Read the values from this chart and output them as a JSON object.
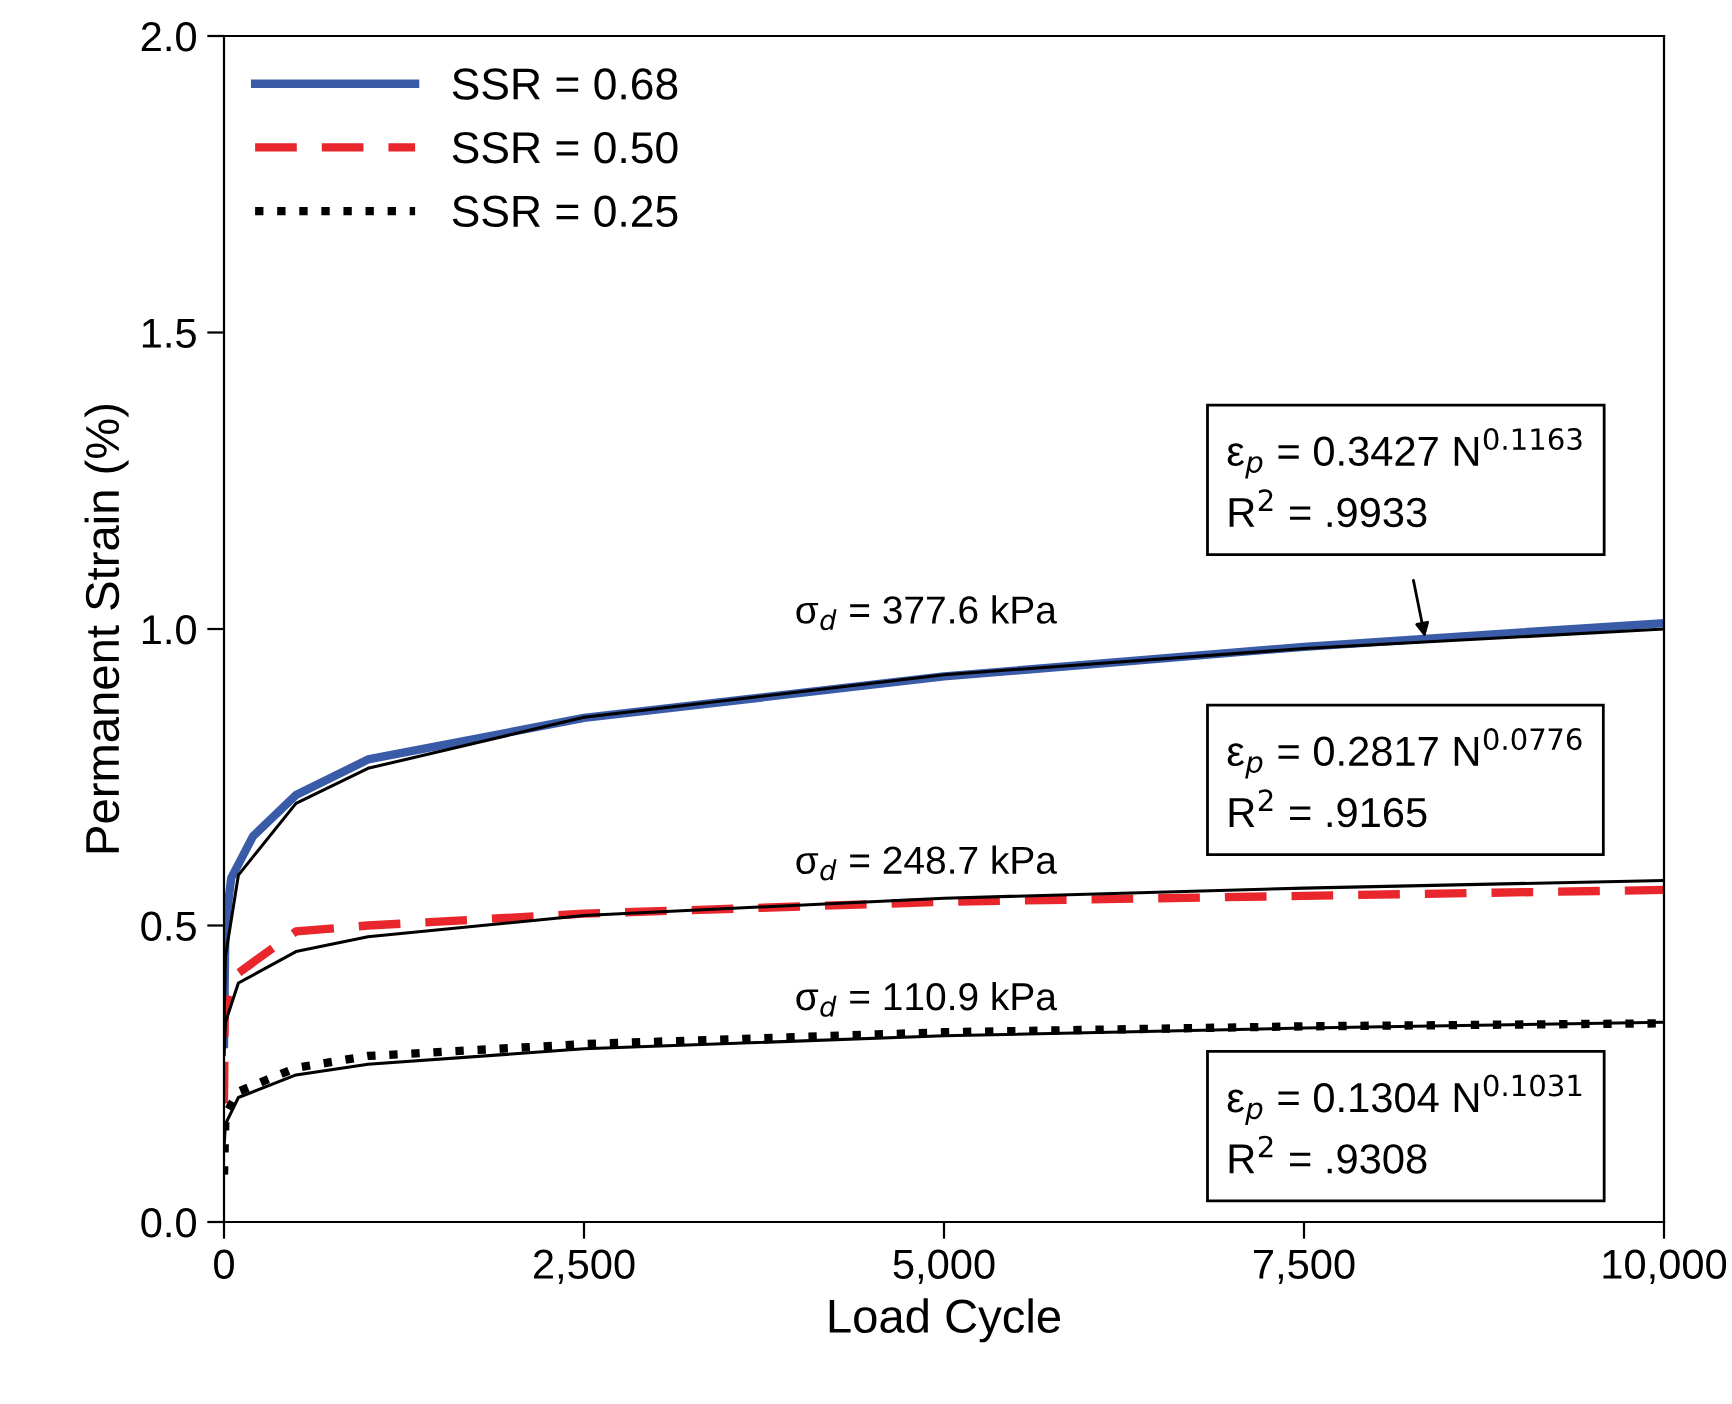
{
  "chart_data": {
    "type": "line",
    "xlabel": "Load Cycle",
    "ylabel": "Permanent Strain (%)",
    "xlim": [
      0,
      10000
    ],
    "ylim": [
      0,
      2.0
    ],
    "xticks": [
      0,
      {
        "value": 2500,
        "label": "2,500"
      },
      {
        "value": 5000,
        "label": "5,000"
      },
      {
        "value": 7500,
        "label": "7,500"
      },
      {
        "value": 10000,
        "label": "10,000"
      }
    ],
    "yticks": [
      {
        "value": 0,
        "label": "0.0"
      },
      0.5,
      {
        "value": 1,
        "label": "1.0"
      },
      1.5,
      {
        "value": 2,
        "label": "2.0"
      }
    ],
    "grid": false,
    "legend": "top left",
    "series": [
      {
        "name": "SSR = 0.68",
        "color": "#3a5ba8",
        "line_style": "solid",
        "x": [
          0,
          10,
          50,
          200,
          500,
          1000,
          2500,
          5000,
          7500,
          10000
        ],
        "values": [
          0.3,
          0.5,
          0.58,
          0.65,
          0.72,
          0.78,
          0.85,
          0.92,
          0.97,
          1.01
        ]
      },
      {
        "name": "SSR = 0.50",
        "color": "#e8262b",
        "line_style": "dashed",
        "x": [
          0,
          5,
          100,
          500,
          1000,
          2500,
          5000,
          7500,
          10000
        ],
        "values": [
          0.2,
          0.35,
          0.42,
          0.49,
          0.5,
          0.52,
          0.54,
          0.55,
          0.56
        ]
      },
      {
        "name": "SSR = 0.25",
        "color": "#000000",
        "line_style": "dotted",
        "x": [
          0,
          10,
          100,
          500,
          1000,
          2500,
          5000,
          7500,
          10000
        ],
        "values": [
          0.08,
          0.18,
          0.22,
          0.26,
          0.28,
          0.3,
          0.32,
          0.33,
          0.335
        ]
      },
      {
        "color": "#000000",
        "line_style": "solid",
        "x": [
          1,
          10,
          100,
          500,
          1000,
          2500,
          5000,
          7500,
          10000
        ],
        "values": [
          0.343,
          0.448,
          0.585,
          0.706,
          0.765,
          0.851,
          0.923,
          0.967,
          1.0
        ]
      },
      {
        "color": "#000000",
        "line_style": "solid",
        "x": [
          1,
          10,
          100,
          500,
          1000,
          2500,
          5000,
          7500,
          10000
        ],
        "values": [
          0.282,
          0.337,
          0.403,
          0.456,
          0.481,
          0.517,
          0.546,
          0.563,
          0.576
        ]
      },
      {
        "color": "#000000",
        "line_style": "solid",
        "x": [
          1,
          10,
          100,
          500,
          1000,
          2500,
          5000,
          7500,
          10000
        ],
        "values": [
          0.13,
          0.165,
          0.21,
          0.248,
          0.266,
          0.292,
          0.314,
          0.327,
          0.337
        ]
      }
    ],
    "annotations": [
      "σ$_{d}$ = 377.6 kPa",
      "σ$_{d}$ = 248.7 kPa",
      "σ$_{d}$ = 110.9 kPa",
      "ε$_{p}$ = 0.3427 N$^{0.1163}$\nR$^{2}$ = .9933",
      "ε$_{p}$ = 0.2817 N$^{0.0776}$\nR$^{2}$ = .9165",
      "ε$_{p}$ = 0.1304 N$^{0.1031}$\nR$^{2}$ = .9308"
    ]
  }
}
